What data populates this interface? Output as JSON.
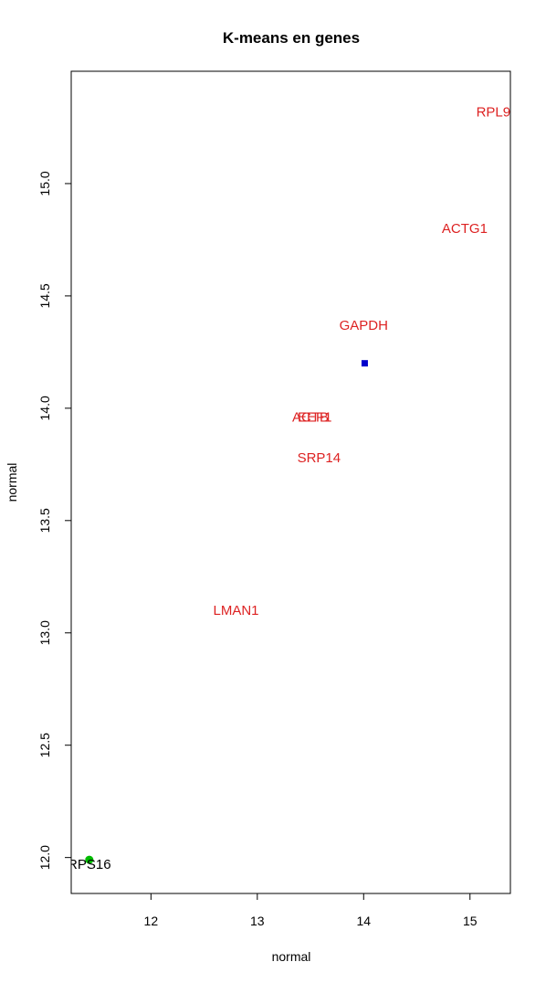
{
  "chart_data": {
    "type": "scatter",
    "title": "K-means en genes",
    "xlabel": "normal",
    "ylabel": "normal",
    "xlim": [
      11.25,
      15.38
    ],
    "ylim": [
      11.84,
      15.5
    ],
    "x_ticks": [
      "12",
      "13",
      "14",
      "15"
    ],
    "y_ticks": [
      "12.0",
      "12.5",
      "13.0",
      "13.5",
      "14.0",
      "14.5",
      "15.0"
    ],
    "colors": {
      "cluster_1": "#dd2222",
      "cluster_2": "#000000",
      "centroid_1": "#0000cc",
      "centroid_2": "#00bb00"
    },
    "points": [
      {
        "label": "RPL9",
        "x": 15.22,
        "y": 15.32,
        "cluster": 1
      },
      {
        "label": "ACTG1",
        "x": 14.95,
        "y": 14.8,
        "cluster": 1
      },
      {
        "label": "GAPDH",
        "x": 14.0,
        "y": 14.37,
        "cluster": 1
      },
      {
        "label": "ACTB",
        "x": 13.5,
        "y": 13.96,
        "cluster": 1
      },
      {
        "label": "EEF1",
        "x": 13.54,
        "y": 13.96,
        "cluster": 1
      },
      {
        "label": "SRP14",
        "x": 13.58,
        "y": 13.78,
        "cluster": 1
      },
      {
        "label": "LMAN1",
        "x": 12.8,
        "y": 13.1,
        "cluster": 1
      },
      {
        "label": "RPS16",
        "x": 11.42,
        "y": 11.97,
        "cluster": 2
      }
    ],
    "centroids": [
      {
        "x": 14.01,
        "y": 14.2,
        "cluster": 1,
        "marker": "square"
      },
      {
        "x": 11.42,
        "y": 11.99,
        "cluster": 2,
        "marker": "circle"
      }
    ]
  }
}
